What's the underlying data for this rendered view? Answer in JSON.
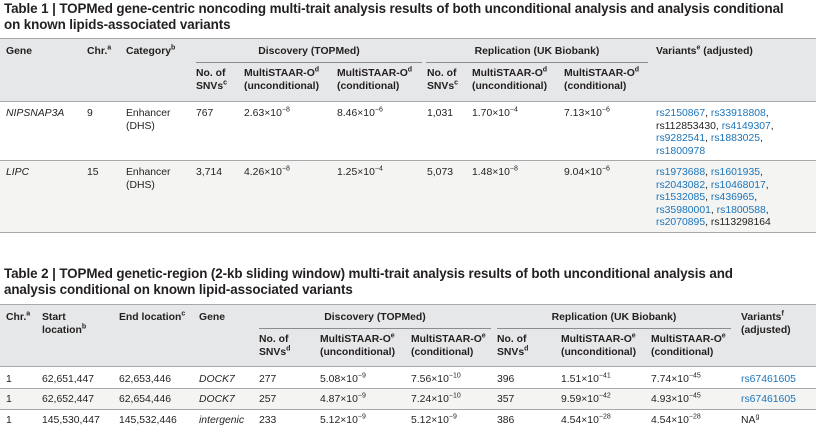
{
  "table1": {
    "caption_label": "Table 1 |",
    "caption_text": " TOPMed gene-centric noncoding multi-trait analysis results of both unconditional analysis and analysis conditional",
    "caption_line2": "on known lipids-associated variants",
    "headers": {
      "gene": "Gene",
      "chr": "Chr.",
      "chr_sup": "a",
      "category": "Category",
      "category_sup": "b",
      "discovery": "Discovery (TOPMed)",
      "replication": "Replication (UK Biobank)",
      "variants": "Variants",
      "variants_sup": "e",
      "variants_tail": " (adjusted)",
      "snvs_l1": "No. of",
      "snvs_l2": "SNVs",
      "snvs_sup": "c",
      "ms_uncond_l1": "MultiSTAAR-O",
      "ms_uncond_l2": "(unconditional)",
      "ms_cond_l1": "MultiSTAAR-O",
      "ms_cond_l2": "(conditional)",
      "ms_sup": "d"
    },
    "rows": [
      {
        "gene": "NIPSNAP3A",
        "chr": "9",
        "category_l1": "Enhancer",
        "category_l2": "(DHS)",
        "disc_snvs": "767",
        "disc_uncond": "2.63×10",
        "disc_uncond_exp": "−8",
        "disc_cond": "8.46×10",
        "disc_cond_exp": "−6",
        "rep_snvs": "1,031",
        "rep_uncond": "1.70×10",
        "rep_uncond_exp": "−4",
        "rep_cond": "7.13×10",
        "rep_cond_exp": "−6",
        "variants": [
          [
            {
              "t": "rs2150867",
              "link": true
            },
            {
              "t": ", ",
              "link": false
            },
            {
              "t": "rs33918808",
              "link": true
            },
            {
              "t": ",",
              "link": false
            }
          ],
          [
            {
              "t": "rs112853430",
              "link": false
            },
            {
              "t": ", ",
              "link": false
            },
            {
              "t": "rs4149307",
              "link": true
            },
            {
              "t": ",",
              "link": false
            }
          ],
          [
            {
              "t": "rs9282541",
              "link": true
            },
            {
              "t": ", ",
              "link": false
            },
            {
              "t": "rs1883025",
              "link": true
            },
            {
              "t": ",",
              "link": false
            }
          ],
          [
            {
              "t": "rs1800978",
              "link": true
            }
          ]
        ]
      },
      {
        "gene": "LIPC",
        "chr": "15",
        "category_l1": "Enhancer",
        "category_l2": "(DHS)",
        "disc_snvs": "3,714",
        "disc_uncond": "4.26×10",
        "disc_uncond_exp": "−8",
        "disc_cond": "1.25×10",
        "disc_cond_exp": "−4",
        "rep_snvs": "5,073",
        "rep_uncond": "1.48×10",
        "rep_uncond_exp": "−8",
        "rep_cond": "9.04×10",
        "rep_cond_exp": "−6",
        "variants": [
          [
            {
              "t": "rs1973688",
              "link": true
            },
            {
              "t": ", ",
              "link": false
            },
            {
              "t": "rs1601935",
              "link": true
            },
            {
              "t": ",",
              "link": false
            }
          ],
          [
            {
              "t": "rs2043082",
              "link": true
            },
            {
              "t": ", ",
              "link": false
            },
            {
              "t": "rs10468017",
              "link": true
            },
            {
              "t": ",",
              "link": false
            }
          ],
          [
            {
              "t": "rs1532085",
              "link": true
            },
            {
              "t": ", ",
              "link": false
            },
            {
              "t": "rs436965",
              "link": true
            },
            {
              "t": ",",
              "link": false
            }
          ],
          [
            {
              "t": "rs35980001",
              "link": true
            },
            {
              "t": ", ",
              "link": false
            },
            {
              "t": "rs1800588",
              "link": true
            },
            {
              "t": ",",
              "link": false
            }
          ],
          [
            {
              "t": "rs2070895",
              "link": true
            },
            {
              "t": ", ",
              "link": false
            },
            {
              "t": "rs113298164",
              "link": false
            }
          ]
        ]
      }
    ]
  },
  "table2": {
    "caption_label": "Table 2 |",
    "caption_text": " TOPMed genetic-region (2-kb sliding window) multi-trait analysis results of both unconditional analysis and",
    "caption_line2": "analysis conditional on known lipid-associated variants",
    "headers": {
      "chr": "Chr.",
      "chr_sup": "a",
      "start_l1": "Start",
      "start_l2": "location",
      "start_sup": "b",
      "end": "End location",
      "end_sup": "c",
      "gene": "Gene",
      "discovery": "Discovery (TOPMed)",
      "replication": "Replication (UK Biobank)",
      "variants_l1": "Variants",
      "variants_sup": "f",
      "variants_l2": "(adjusted)",
      "snvs_l1": "No. of",
      "snvs_l2": "SNVs",
      "snvs_sup": "d",
      "ms_uncond_l1": "MultiSTAAR-O",
      "ms_uncond_l2": "(unconditional)",
      "ms_cond_l1": "MultiSTAAR-O",
      "ms_cond_l2": "(conditional)",
      "ms_sup": "e"
    },
    "rows": [
      {
        "chr": "1",
        "start": "62,651,447",
        "end": "62,653,446",
        "gene": "DOCK7",
        "disc_snvs": "277",
        "disc_uncond": "5.08×10",
        "disc_uncond_exp": "−9",
        "disc_cond": "7.56×10",
        "disc_cond_exp": "−10",
        "rep_snvs": "396",
        "rep_uncond": "1.51×10",
        "rep_uncond_exp": "−41",
        "rep_cond": "7.74×10",
        "rep_cond_exp": "−45",
        "variant": "rs67461605",
        "variant_sup": "",
        "variant_link": true
      },
      {
        "chr": "1",
        "start": "62,652,447",
        "end": "62,654,446",
        "gene": "DOCK7",
        "disc_snvs": "257",
        "disc_uncond": "4.87×10",
        "disc_uncond_exp": "−9",
        "disc_cond": "7.24×10",
        "disc_cond_exp": "−10",
        "rep_snvs": "357",
        "rep_uncond": "9.59×10",
        "rep_uncond_exp": "−42",
        "rep_cond": "4.93×10",
        "rep_cond_exp": "−45",
        "variant": "rs67461605",
        "variant_sup": "",
        "variant_link": true
      },
      {
        "chr": "1",
        "start": "145,530,447",
        "end": "145,532,446",
        "gene": "intergenic",
        "disc_snvs": "233",
        "disc_uncond": "5.12×10",
        "disc_uncond_exp": "−9",
        "disc_cond": "5.12×10",
        "disc_cond_exp": "−9",
        "rep_snvs": "386",
        "rep_uncond": "4.54×10",
        "rep_uncond_exp": "−28",
        "rep_cond": "4.54×10",
        "rep_cond_exp": "−28",
        "variant": "NA",
        "variant_sup": "g",
        "variant_link": false
      }
    ]
  }
}
